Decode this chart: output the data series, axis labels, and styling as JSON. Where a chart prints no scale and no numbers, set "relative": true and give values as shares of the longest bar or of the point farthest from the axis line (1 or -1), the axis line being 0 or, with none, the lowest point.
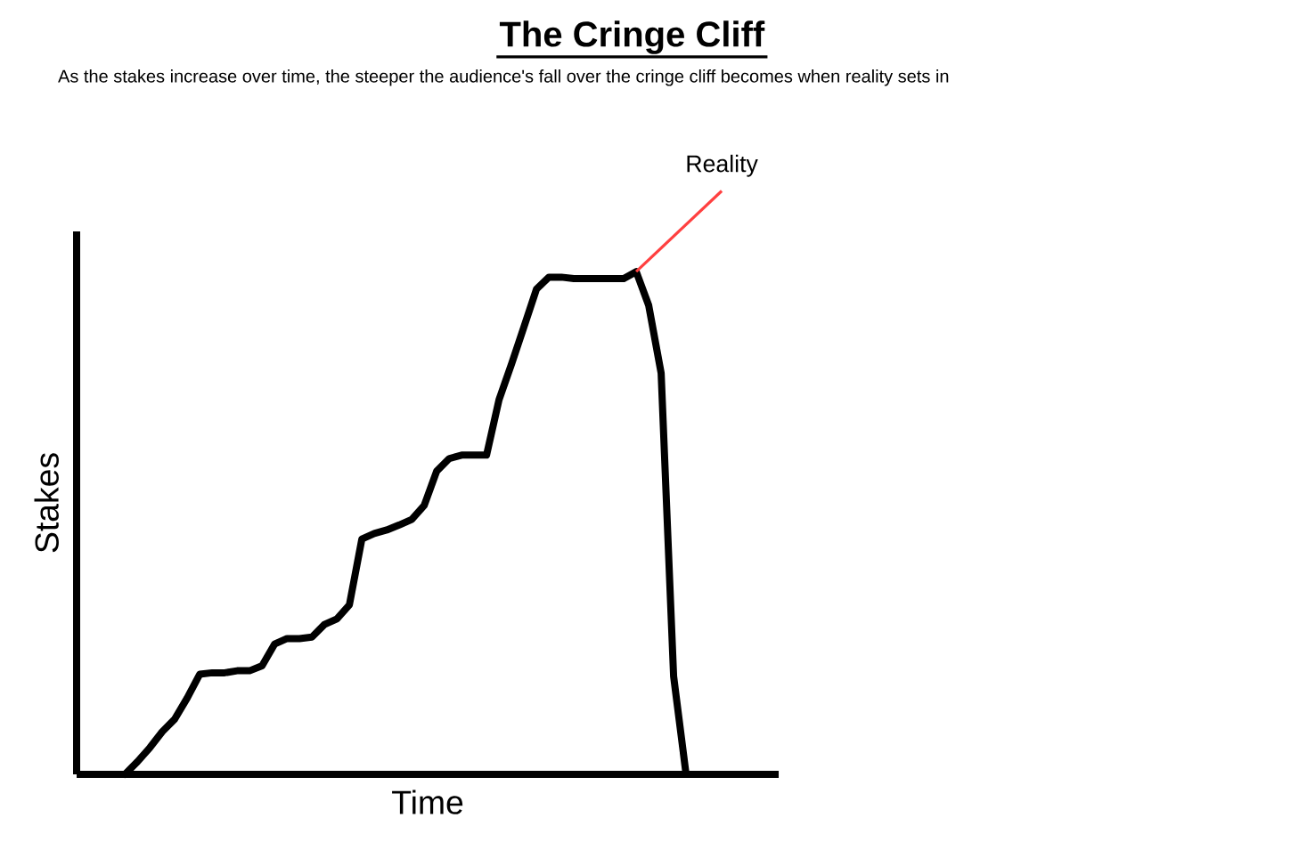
{
  "chart_data": {
    "type": "line",
    "title": "The Cringe Cliff",
    "subtitle": "As the stakes increase over time, the steeper the audience's fall over the cringe cliff becomes when reality sets in",
    "xlabel": "Time",
    "ylabel": "Stakes",
    "relative": true,
    "marker": "none",
    "line_style": "solid",
    "categories": [
      null,
      null,
      null,
      null,
      null,
      null,
      null,
      null,
      null,
      null,
      null,
      null,
      null,
      null,
      null,
      null,
      null,
      null,
      null,
      null,
      null,
      null,
      null,
      null,
      null,
      null,
      null,
      null,
      null,
      null,
      null,
      null,
      null,
      null,
      null,
      null,
      null,
      null,
      null,
      null,
      null,
      null,
      null,
      null,
      null,
      null
    ],
    "series": [
      {
        "color": "#000000",
        "values": [
          0,
          0.025,
          0.053,
          0.085,
          0.11,
          0.152,
          0.199,
          0.202,
          0.202,
          0.206,
          0.206,
          0.216,
          0.259,
          0.27,
          0.27,
          0.273,
          0.298,
          0.309,
          0.337,
          0.468,
          0.479,
          0.486,
          0.496,
          0.507,
          0.535,
          0.603,
          0.628,
          0.635,
          0.635,
          0.635,
          0.745,
          0.816,
          0.89,
          0.965,
          0.989,
          0.989,
          0.986,
          0.986,
          0.986,
          0.986,
          0.986,
          1,
          0.933,
          0.798,
          0.195,
          0
        ]
      }
    ],
    "annotations": [
      "Reality"
    ]
  }
}
